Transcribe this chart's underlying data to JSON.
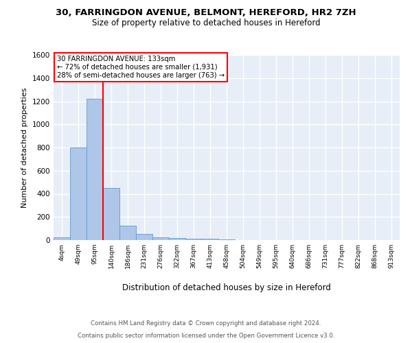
{
  "title1": "30, FARRINGDON AVENUE, BELMONT, HEREFORD, HR2 7ZH",
  "title2": "Size of property relative to detached houses in Hereford",
  "xlabel": "Distribution of detached houses by size in Hereford",
  "ylabel": "Number of detached properties",
  "footer1": "Contains HM Land Registry data © Crown copyright and database right 2024.",
  "footer2": "Contains public sector information licensed under the Open Government Licence v3.0.",
  "bar_labels": [
    "4sqm",
    "49sqm",
    "95sqm",
    "140sqm",
    "186sqm",
    "231sqm",
    "276sqm",
    "322sqm",
    "367sqm",
    "413sqm",
    "458sqm",
    "504sqm",
    "549sqm",
    "595sqm",
    "640sqm",
    "686sqm",
    "731sqm",
    "777sqm",
    "822sqm",
    "868sqm",
    "913sqm"
  ],
  "bar_values": [
    25,
    800,
    1220,
    450,
    125,
    55,
    25,
    18,
    10,
    10,
    5,
    0,
    0,
    0,
    0,
    0,
    0,
    0,
    0,
    0,
    0
  ],
  "bar_color": "#aec6e8",
  "bar_edge_color": "#5b9bd5",
  "ylim": [
    0,
    1600
  ],
  "yticks": [
    0,
    200,
    400,
    600,
    800,
    1000,
    1200,
    1400,
    1600
  ],
  "red_line_x": 2.5,
  "annotation_title": "30 FARRINGDON AVENUE: 133sqm",
  "annotation_line1": "← 72% of detached houses are smaller (1,931)",
  "annotation_line2": "28% of semi-detached houses are larger (763) →",
  "background_color": "#e8eef7",
  "grid_color": "#ffffff",
  "fig_bg": "#ffffff"
}
